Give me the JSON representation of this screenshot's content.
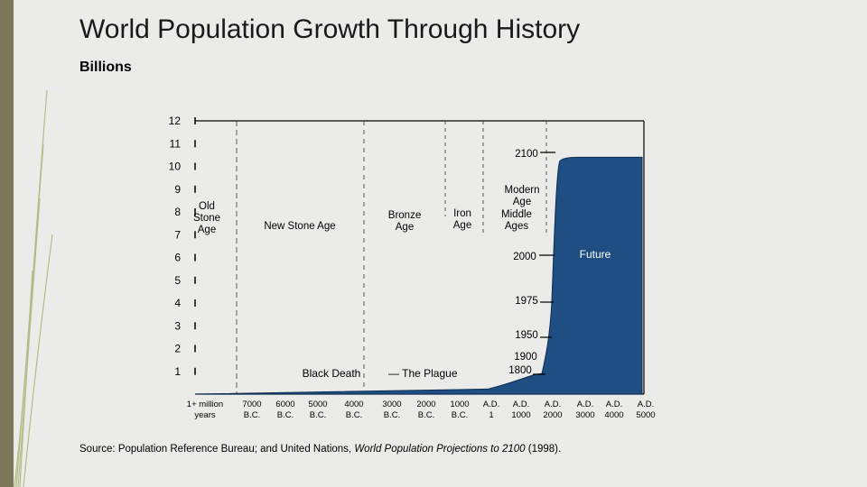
{
  "title": "World Population Growth Through History",
  "unit_label": "Billions",
  "source": {
    "prefix": "Source: Population Reference Bureau; and United Nations, ",
    "publication": "World Population Projections to 2100",
    "suffix": " (1998)."
  },
  "chart_data": {
    "type": "area",
    "ylim": [
      0,
      12
    ],
    "yticks": [
      1,
      2,
      3,
      4,
      5,
      6,
      7,
      8,
      9,
      10,
      11,
      12
    ],
    "xtick_labels": [
      [
        "1+ million",
        "years"
      ],
      [
        "7000",
        "B.C."
      ],
      [
        "6000",
        "B.C."
      ],
      [
        "5000",
        "B.C."
      ],
      [
        "4000",
        "B.C."
      ],
      [
        "3000",
        "B.C."
      ],
      [
        "2000",
        "B.C."
      ],
      [
        "1000",
        "B.C."
      ],
      [
        "A.D.",
        "1"
      ],
      [
        "A.D.",
        "1000"
      ],
      [
        "A.D.",
        "2000"
      ],
      [
        "A.D.",
        "3000"
      ],
      [
        "A.D.",
        "4000"
      ],
      [
        "A.D.",
        "5000"
      ]
    ],
    "series": [
      {
        "color": "#1f4e82",
        "points": [
          {
            "x": "8000 B.C.",
            "y": 0.005
          },
          {
            "x": "1 A.D.",
            "y": 0.3
          },
          {
            "x": "1000 A.D.",
            "y": 0.31
          },
          {
            "x": "1650 A.D.",
            "y": 0.5
          },
          {
            "x": "1800 A.D.",
            "y": 0.9
          },
          {
            "x": "1900 A.D.",
            "y": 1.6
          },
          {
            "x": "1950 A.D.",
            "y": 2.5
          },
          {
            "x": "1975 A.D.",
            "y": 4.1
          },
          {
            "x": "2000 A.D.",
            "y": 6.1
          },
          {
            "x": "2100 A.D.",
            "y": 10.4
          },
          {
            "x": "5000 A.D.",
            "y": 10.4
          }
        ]
      }
    ],
    "period_labels": [
      {
        "lines": [
          "Old",
          "Stone",
          "Age"
        ]
      },
      {
        "lines": [
          "New Stone Age"
        ]
      },
      {
        "lines": [
          "Bronze",
          "Age"
        ]
      },
      {
        "lines": [
          "Iron",
          "Age"
        ]
      },
      {
        "lines": [
          "Middle",
          "Ages"
        ]
      },
      {
        "lines": [
          "Modern",
          "Age"
        ]
      }
    ],
    "year_markers": [
      {
        "label": "2100",
        "y": 10.4
      },
      {
        "label": "2000",
        "y": 6.1
      },
      {
        "label": "1975",
        "y": 4.1
      },
      {
        "label": "1950",
        "y": 2.5
      },
      {
        "label": "1900",
        "y": 1.6
      },
      {
        "label": "1800",
        "y": 0.9
      }
    ],
    "annotations": [
      "Black Death",
      "— The Plague",
      "Future"
    ]
  }
}
